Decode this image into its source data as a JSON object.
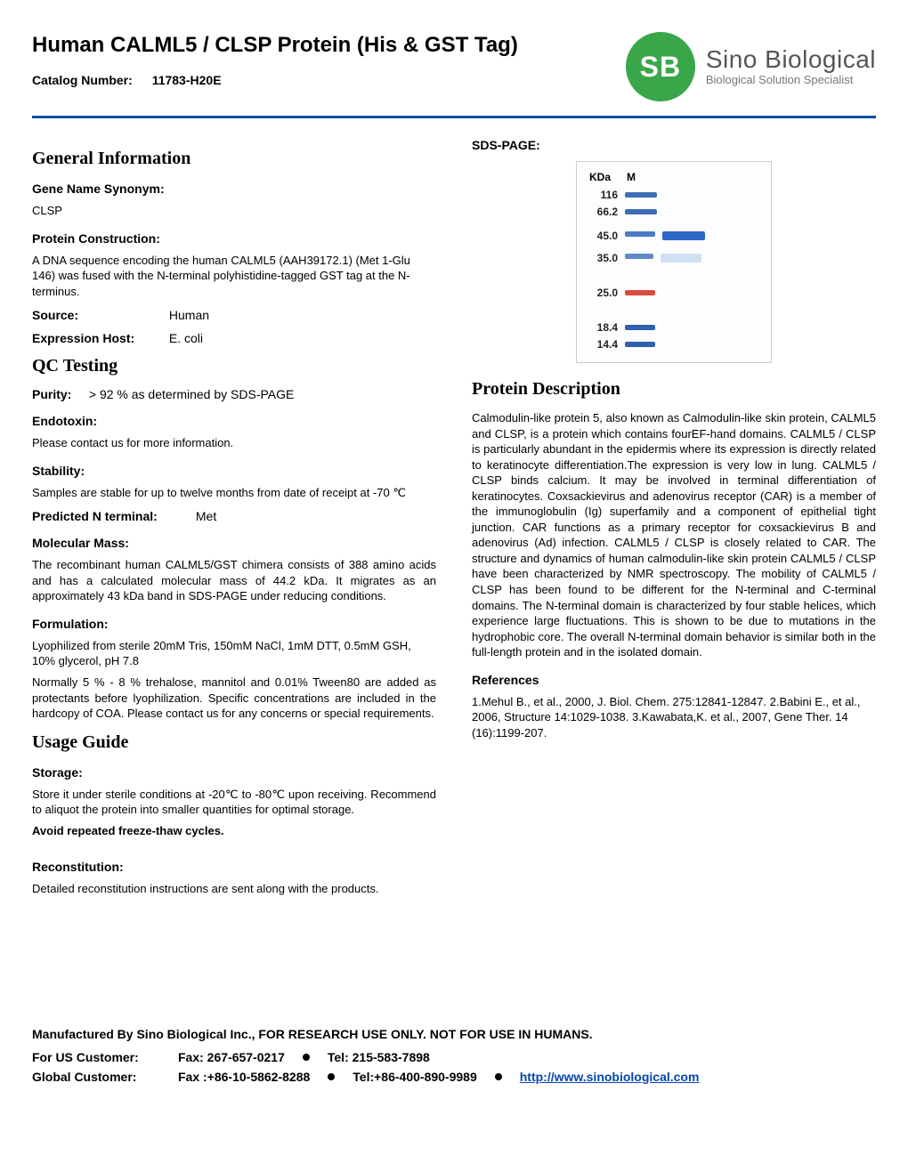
{
  "header": {
    "title": "Human CALML5 / CLSP Protein (His & GST Tag)",
    "catalog_label": "Catalog Number:",
    "catalog_value": "11783-H20E",
    "logo_initials": "SB",
    "logo_name": "Sino Biological",
    "logo_tagline": "Biological Solution Specialist"
  },
  "colors": {
    "divider": "#0a4fa3",
    "logo_bg": "#3aa64a",
    "link": "#0645ad"
  },
  "left": {
    "general_info_heading": "General Information",
    "gene_synonym_label": "Gene Name Synonym:",
    "gene_synonym_value": "CLSP",
    "protein_construction_label": "Protein Construction:",
    "protein_construction_text": "A DNA sequence encoding the human CALML5 (AAH39172.1) (Met 1-Glu 146) was fused with the N-terminal polyhistidine-tagged GST tag at the N-terminus.",
    "source_label": "Source:",
    "source_value": "Human",
    "expression_host_label": "Expression  Host:",
    "expression_host_value": "E. coli",
    "qc_heading": "QC Testing",
    "purity_label": "Purity:",
    "purity_value": "> 92 % as determined by SDS-PAGE",
    "endotoxin_label": "Endotoxin:",
    "endotoxin_text": "Please contact us for more information.",
    "stability_label": "Stability:",
    "stability_text": "Samples are stable for up to twelve months from date of receipt  at -70 ℃",
    "predicted_n_label": "Predicted N terminal:",
    "predicted_n_value": "Met",
    "molecular_mass_label": "Molecular Mass:",
    "molecular_mass_text": "The recombinant human CALML5/GST chimera consists of 388 amino acids and has a calculated molecular mass of 44.2 kDa. It migrates as an approximately 43 kDa band in SDS-PAGE under reducing conditions.",
    "formulation_label": "Formulation:",
    "formulation_text1": "Lyophilized from sterile 20mM Tris, 150mM NaCl, 1mM DTT, 0.5mM GSH, 10% glycerol, pH 7.8",
    "formulation_text2": "Normally 5 % - 8 % trehalose, mannitol and 0.01% Tween80 are added as protectants before lyophilization. Specific concentrations are included in the hardcopy of COA. Please contact us for any concerns or special requirements.",
    "usage_heading": "Usage Guide",
    "storage_label": "Storage:",
    "storage_text": "Store it under sterile conditions at -20℃ to -80℃ upon receiving. Recommend to aliquot the protein into smaller quantities for optimal storage.",
    "storage_bold": "Avoid repeated freeze-thaw cycles.",
    "reconstitution_label": "Reconstitution:",
    "reconstitution_text": "Detailed reconstitution instructions are sent along with the products."
  },
  "right": {
    "sds_label": "SDS-PAGE:",
    "gel": {
      "header_kda": "KDa",
      "header_m": "M",
      "rows": [
        {
          "kda": "116",
          "m_color": "#3b6fb5",
          "m_w": 36,
          "s_color": null,
          "s_w": 0,
          "gap_after": 2
        },
        {
          "kda": "66.2",
          "m_color": "#3b6fb5",
          "m_w": 36,
          "s_color": null,
          "s_w": 0,
          "gap_after": 10
        },
        {
          "kda": "45.0",
          "m_color": "#4a7cc0",
          "m_w": 34,
          "s_color": "#2e66c6",
          "s_w": 48,
          "gap_after": 8
        },
        {
          "kda": "35.0",
          "m_color": "#5f8ac5",
          "m_w": 32,
          "s_color": "#cfe0f2",
          "s_w": 46,
          "gap_after": 22
        },
        {
          "kda": "25.0",
          "m_color": "#d84b3a",
          "m_w": 34,
          "s_color": null,
          "s_w": 0,
          "gap_after": 22
        },
        {
          "kda": "18.4",
          "m_color": "#2f5fae",
          "m_w": 34,
          "s_color": null,
          "s_w": 0,
          "gap_after": 2
        },
        {
          "kda": "14.4",
          "m_color": "#2f5fae",
          "m_w": 34,
          "s_color": null,
          "s_w": 0,
          "gap_after": 0
        }
      ]
    },
    "protein_desc_heading": "Protein Description",
    "protein_desc_text": "Calmodulin-like protein 5, also known as Calmodulin-like skin protein, CALML5 and CLSP, is a protein which contains fourEF-hand domains. CALML5 / CLSP is particularly abundant in the epidermis where its expression is directly related to keratinocyte differentiation.The expression is very low in lung. CALML5 / CLSP binds calcium. It may be involved in terminal differentiation of keratinocytes. Coxsackievirus and adenovirus receptor (CAR) is a member of the immunoglobulin (Ig) superfamily and a component of epithelial tight junction. CAR functions as a primary receptor for coxsackievirus B and adenovirus (Ad) infection. CALML5 / CLSP is closely related to CAR. The structure and dynamics of human calmodulin-like skin protein CALML5 / CLSP have been characterized by NMR spectroscopy. The mobility of CALML5 / CLSP has been found to be different for the N-terminal and C-terminal domains. The N-terminal domain is characterized by four stable helices, which experience large fluctuations. This is shown to be due to mutations in the hydrophobic core. The overall N-terminal domain behavior is similar both in the full-length protein and in the isolated domain.",
    "references_label": "References",
    "references_text": "1.Mehul B., et al., 2000, J. Biol. Chem. 275:12841-12847. 2.Babini E., et al., 2006, Structure 14:1029-1038. 3.Kawabata,K. et al., 2007, Gene Ther. 14 (16):1199-207."
  },
  "footer": {
    "line1": "Manufactured By Sino Biological Inc.,  FOR RESEARCH USE ONLY. NOT FOR USE IN HUMANS.",
    "us_label": "For US Customer:",
    "us_fax": "Fax: 267-657-0217",
    "us_tel": "Tel:  215-583-7898",
    "global_label": "Global Customer:",
    "global_fax": "Fax :+86-10-5862-8288",
    "global_tel": "Tel:+86-400-890-9989",
    "url": "http://www.sinobiological.com"
  }
}
